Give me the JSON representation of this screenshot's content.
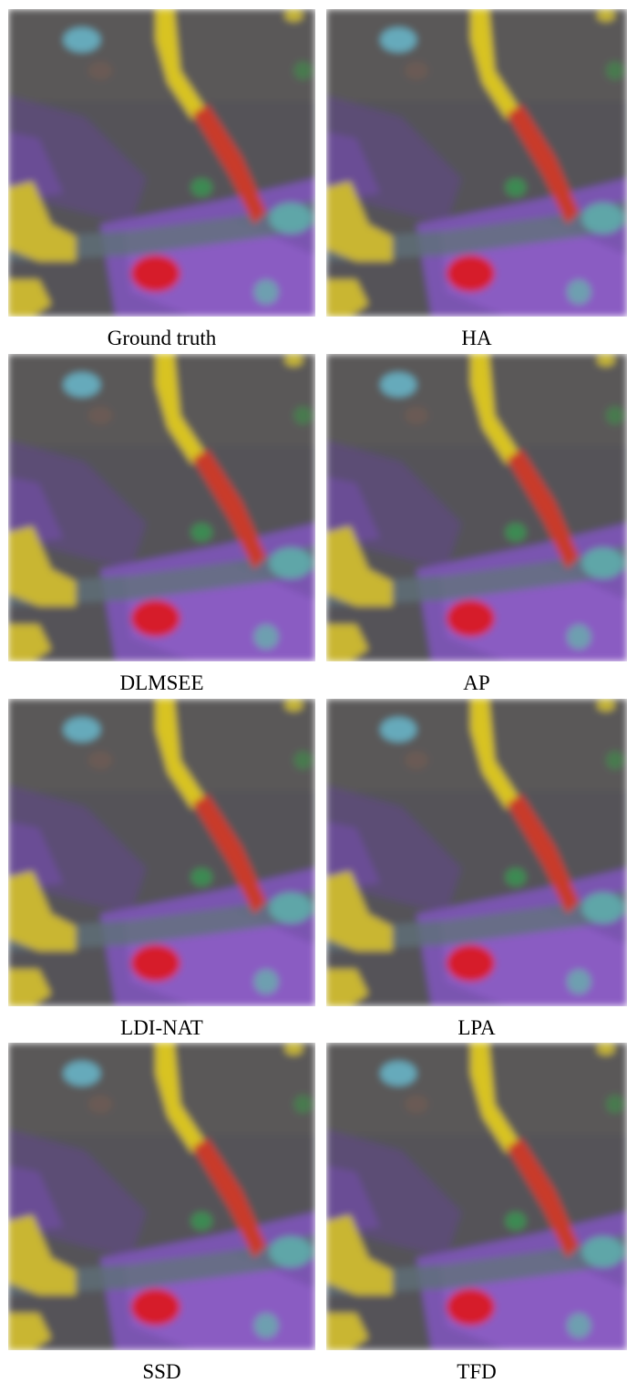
{
  "figure": {
    "panels": [
      {
        "caption": "Ground truth"
      },
      {
        "caption": "HA"
      },
      {
        "caption": "DLMSEE"
      },
      {
        "caption": "AP"
      },
      {
        "caption": "LDI-NAT"
      },
      {
        "caption": "LPA"
      },
      {
        "caption": "SSD"
      },
      {
        "caption": "TFD"
      }
    ]
  }
}
